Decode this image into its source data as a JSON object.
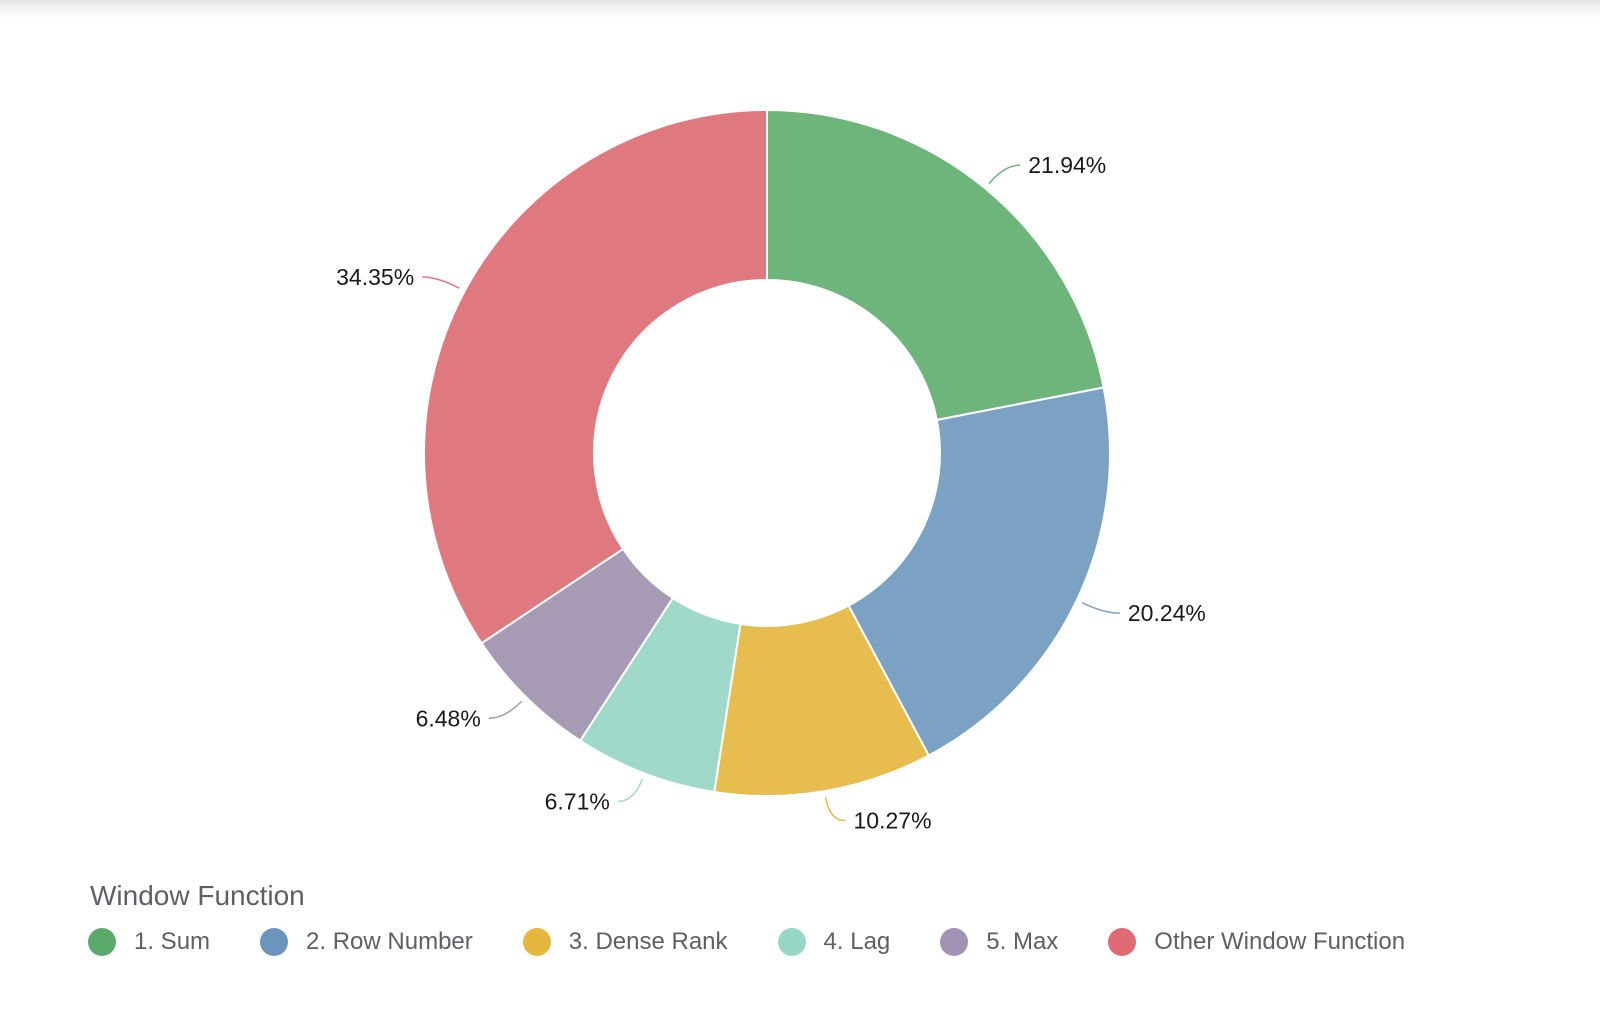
{
  "chart_data": {
    "type": "pie",
    "variant": "donut",
    "legend_title": "Window Function",
    "legend_position": "bottom-left",
    "categories": [
      "1. Sum",
      "2. Row Number",
      "3. Dense Rank",
      "4. Lag",
      "5. Max",
      "Other Window Function"
    ],
    "values": [
      21.94,
      20.24,
      10.27,
      6.71,
      6.48,
      34.35
    ],
    "value_labels": [
      "21.94%",
      "20.24%",
      "10.27%",
      "6.71%",
      "6.48%",
      "34.35%"
    ],
    "colors": [
      "#6db57a",
      "#7ba2c3",
      "#e7bd4f",
      "#9fd9c9",
      "#a79ab5",
      "#df797f"
    ],
    "legend_colors": [
      "#5aaa6b",
      "#6b95bd",
      "#e6b73e",
      "#96d8c5",
      "#a293b5",
      "#e06a73"
    ]
  }
}
